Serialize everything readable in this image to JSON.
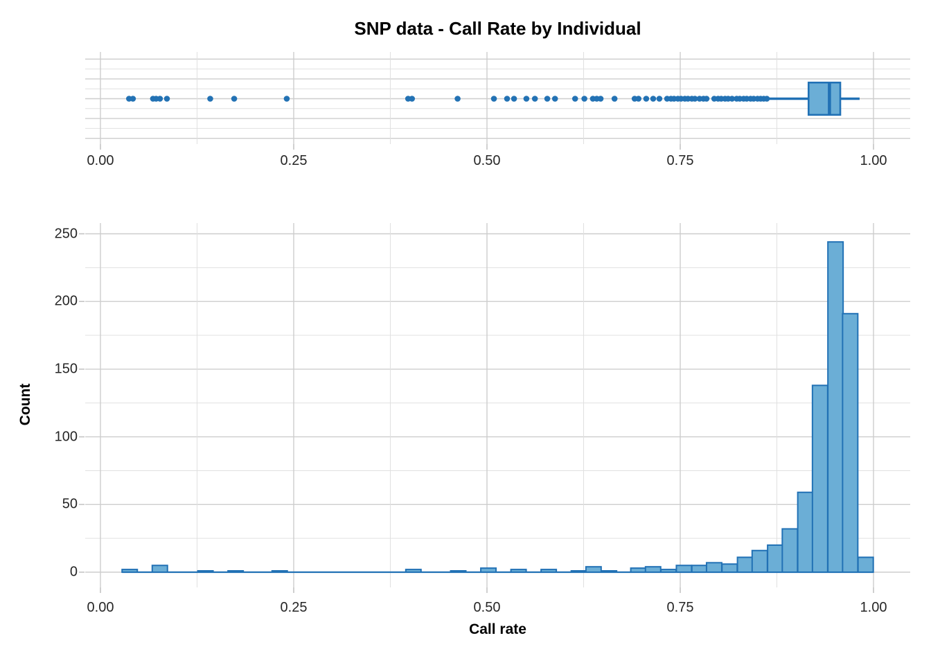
{
  "title": "SNP data - Call Rate by Individual",
  "colors": {
    "bar_fill": "#6baed6",
    "bar_stroke": "#2171b5",
    "point": "#2372b4",
    "grid_major": "#cdcdcd",
    "grid_minor": "#e0e0e0",
    "tick_mark": "#c4c4c4",
    "axis_text": "#262626",
    "background": "#ffffff"
  },
  "chart_data": [
    {
      "type": "boxplot",
      "orientation": "horizontal",
      "variable": "Call rate",
      "x_tick_labels": [
        "0.00",
        "0.25",
        "0.50",
        "0.75",
        "1.00"
      ],
      "x_tick_values": [
        0,
        0.25,
        0.5,
        0.75,
        1.0
      ],
      "x_minor_values": [
        0.125,
        0.375,
        0.625,
        0.875
      ],
      "xlim": [
        -0.02,
        1.047
      ],
      "grid": true,
      "box": {
        "whisker_low": 0.863,
        "q1": 0.916,
        "median": 0.943,
        "q3": 0.957,
        "whisker_high": 0.982
      },
      "outliers": [
        0.037,
        0.042,
        0.068,
        0.072,
        0.077,
        0.086,
        0.142,
        0.173,
        0.241,
        0.398,
        0.403,
        0.462,
        0.509,
        0.526,
        0.535,
        0.551,
        0.562,
        0.578,
        0.588,
        0.614,
        0.626,
        0.637,
        0.642,
        0.647,
        0.665,
        0.691,
        0.696,
        0.706,
        0.715,
        0.723,
        0.733,
        0.738,
        0.742,
        0.747,
        0.751,
        0.756,
        0.76,
        0.765,
        0.769,
        0.775,
        0.78,
        0.784,
        0.794,
        0.799,
        0.803,
        0.808,
        0.812,
        0.817,
        0.823,
        0.827,
        0.832,
        0.836,
        0.841,
        0.845,
        0.85,
        0.854,
        0.858,
        0.862
      ]
    },
    {
      "type": "bar",
      "subtype": "histogram",
      "xlabel": "Call rate",
      "ylabel": "Count",
      "x_tick_labels": [
        "0.00",
        "0.25",
        "0.50",
        "0.75",
        "1.00"
      ],
      "x_tick_values": [
        0,
        0.25,
        0.5,
        0.75,
        1.0
      ],
      "x_minor_values": [
        0.125,
        0.375,
        0.625,
        0.875
      ],
      "y_tick_labels": [
        "0",
        "50",
        "100",
        "150",
        "200",
        "250"
      ],
      "y_tick_values": [
        0,
        50,
        100,
        150,
        200,
        250
      ],
      "y_minor_values": [
        25,
        75,
        125,
        175,
        225
      ],
      "xlim": [
        -0.02,
        1.047
      ],
      "ylim": [
        0,
        256
      ],
      "grid": true,
      "bin_width": 0.0197,
      "bins": [
        {
          "x": 0.028,
          "count": 2
        },
        {
          "x": 0.067,
          "count": 5
        },
        {
          "x": 0.126,
          "count": 1
        },
        {
          "x": 0.165,
          "count": 1
        },
        {
          "x": 0.222,
          "count": 1
        },
        {
          "x": 0.395,
          "count": 2
        },
        {
          "x": 0.453,
          "count": 1
        },
        {
          "x": 0.492,
          "count": 3
        },
        {
          "x": 0.531,
          "count": 2
        },
        {
          "x": 0.57,
          "count": 2
        },
        {
          "x": 0.609,
          "count": 1
        },
        {
          "x": 0.628,
          "count": 4
        },
        {
          "x": 0.648,
          "count": 1
        },
        {
          "x": 0.686,
          "count": 3
        },
        {
          "x": 0.705,
          "count": 4
        },
        {
          "x": 0.725,
          "count": 2
        },
        {
          "x": 0.745,
          "count": 5
        },
        {
          "x": 0.765,
          "count": 5
        },
        {
          "x": 0.784,
          "count": 7
        },
        {
          "x": 0.804,
          "count": 6
        },
        {
          "x": 0.824,
          "count": 11
        },
        {
          "x": 0.843,
          "count": 16
        },
        {
          "x": 0.863,
          "count": 20
        },
        {
          "x": 0.882,
          "count": 32
        },
        {
          "x": 0.902,
          "count": 59
        },
        {
          "x": 0.921,
          "count": 138
        },
        {
          "x": 0.941,
          "count": 244
        },
        {
          "x": 0.96,
          "count": 191
        },
        {
          "x": 0.98,
          "count": 11
        }
      ]
    }
  ]
}
